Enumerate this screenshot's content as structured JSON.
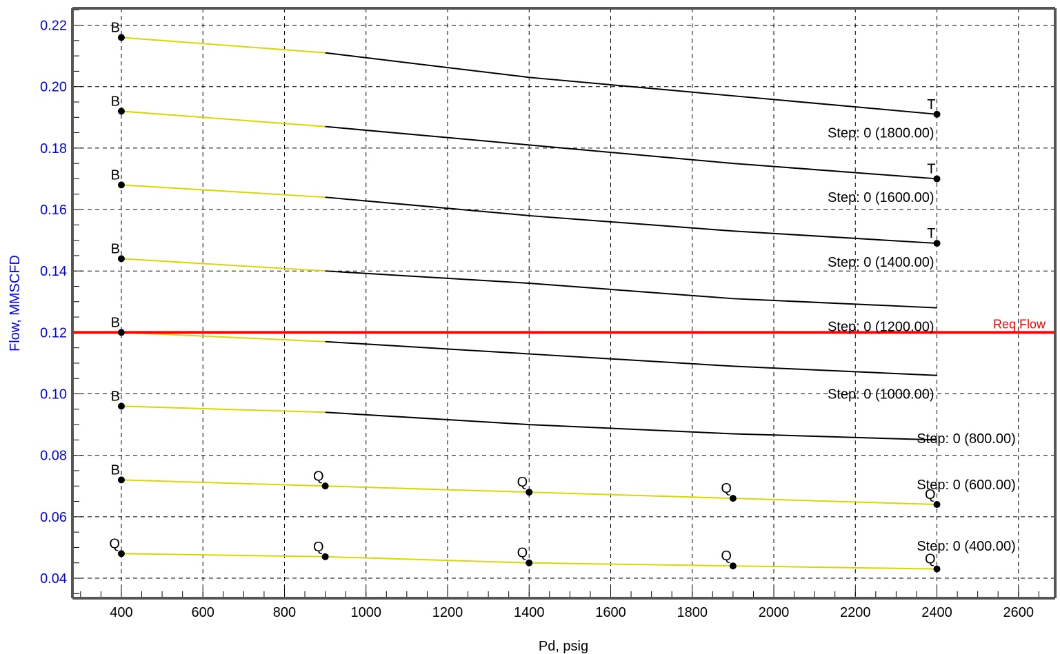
{
  "chart_data": {
    "type": "line",
    "xlabel": "Pd, psig",
    "ylabel": "Flow, MMSCFD",
    "xlim": [
      280,
      2690
    ],
    "ylim": [
      0.0335,
      0.2255
    ],
    "x_ticks": [
      400,
      600,
      800,
      1000,
      1200,
      1400,
      1600,
      1800,
      2000,
      2200,
      2400,
      2600
    ],
    "y_ticks": [
      0.04,
      0.06,
      0.08,
      0.1,
      0.12,
      0.14,
      0.16,
      0.18,
      0.2,
      0.22
    ],
    "y_tick_labels": [
      "0.04",
      "0.06",
      "0.08",
      "0.10",
      "0.12",
      "0.14",
      "0.16",
      "0.18",
      "0.20",
      "0.22"
    ],
    "grid": true,
    "colors": {
      "yellow_segment": "#d8d800",
      "black_segment": "#000000",
      "reference_line": "#ff0000",
      "y_axis_text": "#0000ff",
      "frame": "#555555"
    },
    "reference_line": {
      "y": 0.12,
      "label": "Req Flow"
    },
    "series": [
      {
        "name": "Step: 0 (1800.00)",
        "x": [
          400,
          900,
          1400,
          1900,
          2400
        ],
        "y": [
          0.216,
          0.211,
          0.203,
          0.197,
          0.191
        ],
        "yellow_until_index": 1,
        "point_labels": [
          {
            "x": 400,
            "y": 0.216,
            "text": "B"
          },
          {
            "x": 2400,
            "y": 0.191,
            "text": "T"
          }
        ],
        "label_pos": {
          "x": 2400,
          "y": 0.185
        }
      },
      {
        "name": "Step: 0 (1600.00)",
        "x": [
          400,
          900,
          1400,
          1900,
          2400
        ],
        "y": [
          0.192,
          0.187,
          0.181,
          0.175,
          0.17
        ],
        "yellow_until_index": 1,
        "point_labels": [
          {
            "x": 400,
            "y": 0.192,
            "text": "B"
          },
          {
            "x": 2400,
            "y": 0.17,
            "text": "T"
          }
        ],
        "label_pos": {
          "x": 2400,
          "y": 0.164
        }
      },
      {
        "name": "Step: 0 (1400.00)",
        "x": [
          400,
          900,
          1400,
          1900,
          2400
        ],
        "y": [
          0.168,
          0.164,
          0.158,
          0.153,
          0.149
        ],
        "yellow_until_index": 1,
        "point_labels": [
          {
            "x": 400,
            "y": 0.168,
            "text": "B"
          },
          {
            "x": 2400,
            "y": 0.149,
            "text": "T"
          }
        ],
        "label_pos": {
          "x": 2400,
          "y": 0.143
        }
      },
      {
        "name": "Step: 0 (1200.00)",
        "x": [
          400,
          900,
          1400,
          1900,
          2400
        ],
        "y": [
          0.144,
          0.14,
          0.136,
          0.131,
          0.128
        ],
        "yellow_until_index": 1,
        "point_labels": [
          {
            "x": 400,
            "y": 0.144,
            "text": "B"
          }
        ],
        "label_pos": {
          "x": 2400,
          "y": 0.122
        }
      },
      {
        "name": "Step: 0 (1000.00)",
        "x": [
          400,
          900,
          1400,
          1900,
          2400
        ],
        "y": [
          0.12,
          0.117,
          0.113,
          0.109,
          0.106
        ],
        "yellow_until_index": 1,
        "point_labels": [
          {
            "x": 400,
            "y": 0.12,
            "text": "B"
          }
        ],
        "label_pos": {
          "x": 2400,
          "y": 0.1
        }
      },
      {
        "name": "Step: 0 (800.00)",
        "x": [
          400,
          900,
          1400,
          1900,
          2400
        ],
        "y": [
          0.096,
          0.094,
          0.09,
          0.087,
          0.085
        ],
        "yellow_until_index": 1,
        "point_labels": [
          {
            "x": 400,
            "y": 0.096,
            "text": "B"
          }
        ],
        "label_pos": {
          "x": 2600,
          "y": 0.0855
        }
      },
      {
        "name": "Step: 0 (600.00)",
        "x": [
          400,
          900,
          1400,
          1900,
          2400
        ],
        "y": [
          0.072,
          0.07,
          0.068,
          0.066,
          0.064
        ],
        "yellow_until_index": 4,
        "point_labels": [
          {
            "x": 400,
            "y": 0.072,
            "text": "B"
          },
          {
            "x": 900,
            "y": 0.07,
            "text": "Q"
          },
          {
            "x": 1400,
            "y": 0.068,
            "text": "Q"
          },
          {
            "x": 1900,
            "y": 0.066,
            "text": "Q"
          },
          {
            "x": 2400,
            "y": 0.064,
            "text": "Q"
          }
        ],
        "label_pos": {
          "x": 2600,
          "y": 0.0705
        }
      },
      {
        "name": "Step: 0 (400.00)",
        "x": [
          400,
          900,
          1400,
          1900,
          2400
        ],
        "y": [
          0.048,
          0.047,
          0.045,
          0.044,
          0.043
        ],
        "yellow_until_index": 4,
        "point_labels": [
          {
            "x": 400,
            "y": 0.048,
            "text": "Q"
          },
          {
            "x": 900,
            "y": 0.047,
            "text": "Q"
          },
          {
            "x": 1400,
            "y": 0.045,
            "text": "Q"
          },
          {
            "x": 1900,
            "y": 0.044,
            "text": "Q"
          },
          {
            "x": 2400,
            "y": 0.043,
            "text": "Q"
          }
        ],
        "label_pos": {
          "x": 2600,
          "y": 0.0505
        }
      }
    ]
  }
}
